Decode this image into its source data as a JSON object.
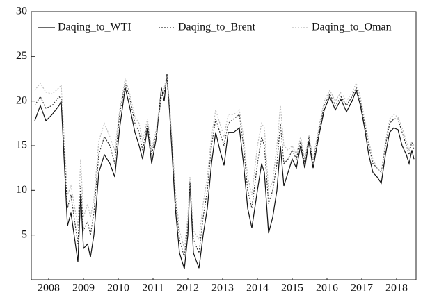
{
  "chart_data": {
    "type": "line",
    "x": [
      2008.1,
      2008.26,
      2008.42,
      2008.6,
      2008.8,
      2008.86,
      2009.04,
      2009.14,
      2009.34,
      2009.42,
      2009.5,
      2009.62,
      2009.7,
      2009.8,
      2009.94,
      2010.1,
      2010.26,
      2010.4,
      2010.54,
      2010.7,
      2010.82,
      2010.98,
      2011.1,
      2011.2,
      2011.34,
      2011.46,
      2011.6,
      2011.74,
      2011.82,
      2011.9,
      2011.98,
      2012.14,
      2012.26,
      2012.4,
      2012.5,
      2012.56,
      2012.66,
      2012.82,
      2012.94,
      2013.06,
      2013.18,
      2013.3,
      2013.42,
      2013.54,
      2013.66,
      2013.82,
      2013.98,
      2014.1,
      2014.22,
      2014.34,
      2014.5,
      2014.62,
      2014.7,
      2014.82,
      2014.94,
      2015.06,
      2015.16,
      2015.26,
      2015.38,
      2015.5,
      2015.62,
      2015.74,
      2015.86,
      2015.98,
      2016.1,
      2016.26,
      2016.42,
      2016.58,
      2016.74,
      2016.9,
      2017.06,
      2017.22,
      2017.34,
      2017.46,
      2017.58,
      2017.7,
      2017.82,
      2017.94,
      2018.06,
      2018.18,
      2018.3,
      2018.42,
      2018.54,
      2018.66,
      2018.78,
      2018.86,
      2018.94,
      2019.0
    ],
    "series": [
      {
        "name": "Daqing_to_WTI",
        "color": "#111111",
        "dash": "solid",
        "values": [
          17.8,
          19.5,
          17.8,
          18.5,
          19.5,
          20,
          6,
          7.5,
          2,
          9.5,
          3.5,
          4,
          2.5,
          5,
          12,
          14,
          13,
          11.5,
          17,
          21.5,
          19.5,
          16.5,
          15,
          13.5,
          17,
          13,
          16,
          21.5,
          20,
          23,
          18.5,
          8,
          3,
          1.2,
          5,
          11,
          3,
          1.3,
          5,
          8,
          13,
          16.5,
          14.5,
          12.8,
          16.5,
          16.5,
          17,
          13,
          8,
          5.8,
          10,
          13,
          12,
          5.2,
          7,
          10,
          15,
          10.5,
          12,
          13.5,
          12.5,
          15,
          12.5,
          15.5,
          12.5,
          16,
          19,
          20.5,
          19,
          20.2,
          18.8,
          20,
          21.2,
          19.5,
          17,
          14,
          12,
          11.5,
          10.8,
          14,
          16.5,
          17,
          16.8,
          15,
          14,
          13,
          14.5,
          13.5
        ]
      },
      {
        "name": "Daqing_to_Brent",
        "color": "#333333",
        "dash": "dotted",
        "values": [
          19.5,
          20.5,
          19.2,
          19.5,
          20.5,
          20.2,
          8,
          9.5,
          4,
          10.5,
          5.5,
          6.5,
          5,
          7.5,
          14,
          16,
          15,
          13,
          18.5,
          22,
          20.5,
          17.5,
          16.5,
          14.5,
          17.5,
          14,
          16.5,
          20.5,
          21,
          22.5,
          19,
          9,
          4.5,
          2.5,
          6,
          10.5,
          4.5,
          3,
          7,
          10,
          15,
          18,
          16.5,
          15,
          17.5,
          18,
          18.5,
          15,
          10,
          8,
          13,
          16,
          15,
          8.5,
          10,
          13,
          17.5,
          13,
          13.5,
          14.5,
          13.5,
          15.5,
          13,
          16,
          13,
          16.5,
          19.5,
          20.8,
          19.5,
          20.5,
          19.5,
          20.5,
          21.5,
          20,
          17.5,
          15,
          13,
          12.5,
          12,
          15,
          17.5,
          18,
          18,
          16.5,
          15,
          14,
          15.5,
          14.5
        ]
      },
      {
        "name": "Daqing_to_Oman",
        "color": "#bbbbbb",
        "dash": "dotted",
        "values": [
          21.2,
          22,
          21,
          20.8,
          21.5,
          21.8,
          9.5,
          10.5,
          6,
          13.5,
          7,
          8.5,
          7,
          9,
          15.5,
          17.5,
          16,
          14.5,
          19,
          22.5,
          21,
          18.2,
          17.5,
          15.5,
          18,
          14.5,
          17,
          21,
          21.5,
          22.8,
          19.5,
          10,
          5.5,
          3.5,
          7,
          11.5,
          5.5,
          4.5,
          8.5,
          11.5,
          16,
          19,
          17.5,
          16,
          18.5,
          18.5,
          19,
          16,
          11.5,
          9.5,
          15,
          17.5,
          17,
          10,
          11,
          15,
          19.5,
          15,
          14.5,
          15,
          14,
          16,
          13.5,
          16.2,
          13.5,
          17,
          20,
          21.2,
          20,
          21,
          20,
          21,
          22,
          20.5,
          18,
          15.5,
          13.5,
          12.5,
          12,
          15.5,
          18,
          18.5,
          18.2,
          17,
          15.5,
          14.5,
          15.5,
          15
        ]
      }
    ],
    "xlim": [
      2008,
      2019.06
    ],
    "xticks": [
      {
        "value": 2008.5,
        "label": "2008"
      },
      {
        "value": 2009.5,
        "label": "2009"
      },
      {
        "value": 2010.5,
        "label": "2010"
      },
      {
        "value": 2011.5,
        "label": "2011"
      },
      {
        "value": 2012.5,
        "label": "2012"
      },
      {
        "value": 2013.5,
        "label": "2013"
      },
      {
        "value": 2014.5,
        "label": "2014"
      },
      {
        "value": 2015.5,
        "label": "2015"
      },
      {
        "value": 2016.5,
        "label": "2016"
      },
      {
        "value": 2017.5,
        "label": "2017"
      },
      {
        "value": 2018.5,
        "label": "2018"
      }
    ],
    "ylim": [
      0,
      30
    ],
    "yticks": [
      5,
      10,
      15,
      20,
      25,
      30
    ],
    "legend": "top"
  }
}
